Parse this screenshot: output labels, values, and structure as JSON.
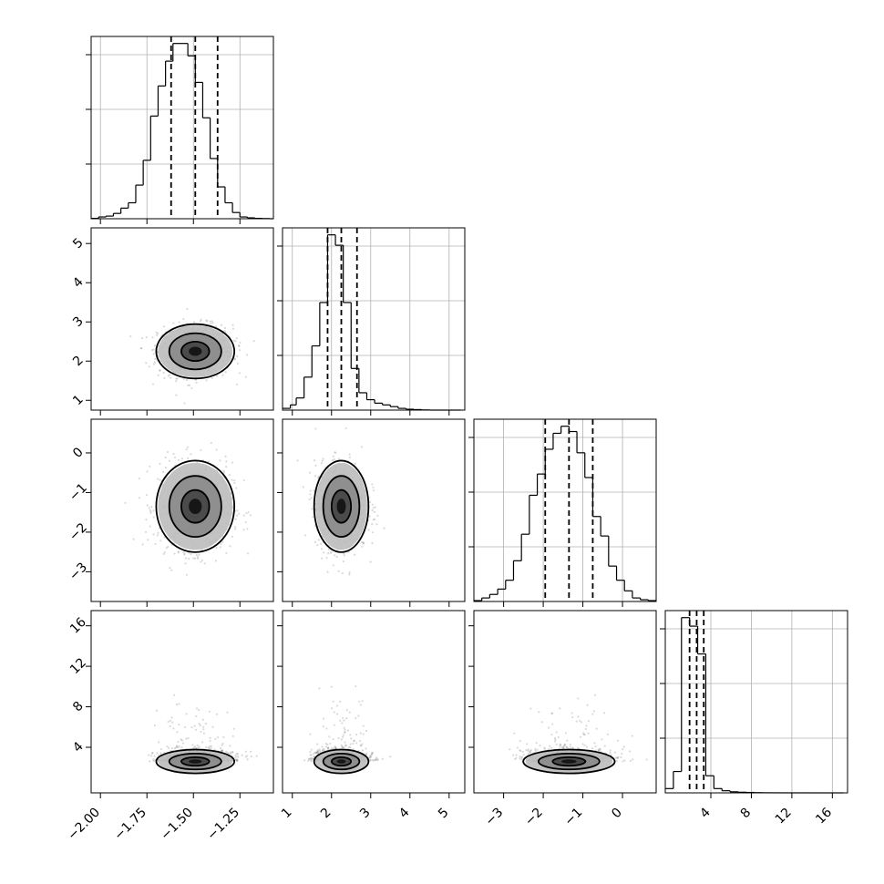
{
  "chart_data": {
    "type": "corner",
    "n_params": 4,
    "params": [
      {
        "range": [
          -2.05,
          -1.07
        ],
        "ticks": [
          -2.0,
          -1.75,
          -1.5,
          -1.25
        ],
        "tick_labels": [
          "−2.00",
          "−1.75",
          "−1.50",
          "−1.25"
        ],
        "quantiles": [
          -1.62,
          -1.49,
          -1.37
        ],
        "hist": {
          "edges": [
            -2.05,
            -2.01,
            -1.97,
            -1.93,
            -1.89,
            -1.85,
            -1.81,
            -1.77,
            -1.73,
            -1.69,
            -1.65,
            -1.61,
            -1.57,
            -1.53,
            -1.49,
            -1.45,
            -1.41,
            -1.37,
            -1.33,
            -1.29,
            -1.25,
            -1.21,
            -1.17,
            -1.13,
            -1.09,
            -1.07
          ],
          "counts": [
            0.2,
            1,
            1.5,
            3,
            6,
            9,
            19,
            33,
            58,
            75,
            89,
            99,
            99,
            92,
            77,
            57,
            34,
            18,
            9,
            3.5,
            1,
            0.5,
            0.2,
            0.1,
            0
          ]
        }
      },
      {
        "range": [
          0.75,
          5.4
        ],
        "ticks": [
          1,
          2,
          3,
          4,
          5
        ],
        "tick_labels": [
          "1",
          "2",
          "3",
          "4",
          "5"
        ],
        "quantiles": [
          1.9,
          2.25,
          2.65
        ],
        "hist": {
          "edges": [
            0.75,
            0.95,
            1.1,
            1.3,
            1.5,
            1.7,
            1.9,
            2.1,
            2.3,
            2.5,
            2.7,
            2.9,
            3.1,
            3.3,
            3.5,
            3.7,
            3.9,
            4.1,
            4.3,
            4.5,
            4.7,
            4.9,
            5.1,
            5.3
          ],
          "counts": [
            1,
            3,
            7,
            19,
            37,
            62,
            101,
            95,
            62,
            24,
            10,
            6,
            4,
            3,
            2,
            1,
            0.5,
            0.3,
            0.1,
            0,
            0,
            0,
            0
          ]
        }
      },
      {
        "range": [
          -3.75,
          0.85
        ],
        "ticks": [
          -3,
          -2,
          -1,
          0
        ],
        "tick_labels": [
          "−3",
          "−2",
          "−1",
          "0"
        ],
        "quantiles": [
          -1.95,
          -1.35,
          -0.75
        ],
        "hist": {
          "edges": [
            -3.75,
            -3.55,
            -3.35,
            -3.15,
            -2.95,
            -2.75,
            -2.55,
            -2.35,
            -2.15,
            -1.95,
            -1.75,
            -1.55,
            -1.35,
            -1.15,
            -0.95,
            -0.75,
            -0.55,
            -0.35,
            -0.15,
            0.05,
            0.25,
            0.45,
            0.65,
            0.85
          ],
          "counts": [
            0.5,
            2,
            4,
            7,
            12,
            23,
            38,
            60,
            72,
            86,
            95,
            99,
            96,
            84,
            70,
            48,
            37,
            20,
            12,
            6,
            2,
            1,
            0.5
          ]
        }
      },
      {
        "range": [
          -0.5,
          17.5
        ],
        "ticks": [
          4,
          8,
          12,
          16
        ],
        "tick_labels": [
          "4",
          "8",
          "12",
          "16"
        ],
        "quantiles": [
          1.9,
          2.6,
          3.3
        ],
        "hist": {
          "edges": [
            -0.5,
            0.3,
            1.1,
            1.9,
            2.7,
            3.5,
            4.3,
            5.1,
            5.9,
            6.7,
            7.5,
            8.3,
            9.1,
            9.9,
            10.7,
            11.5,
            12.3,
            13.1,
            13.9,
            14.7,
            15.5,
            16.3,
            17.1
          ],
          "counts": [
            2,
            10,
            82,
            78,
            65,
            8,
            2,
            1,
            0.5,
            0.3,
            0.2,
            0.1,
            0.05,
            0.03,
            0.02,
            0.01,
            0.01,
            0.01,
            0.005,
            0,
            0,
            0
          ]
        }
      }
    ],
    "joint": {
      "p1": {
        "mean": [
          -1.49,
          2.25
        ],
        "std": [
          0.1,
          0.33
        ]
      },
      "p2": {
        "mean": [
          -1.49,
          -1.35
        ],
        "std": [
          0.11,
          0.55
        ]
      },
      "p3": {
        "mean": [
          -1.49,
          2.6
        ],
        "std": [
          0.1,
          0.8
        ]
      }
    },
    "grid": true,
    "title": "",
    "legend": "none"
  }
}
